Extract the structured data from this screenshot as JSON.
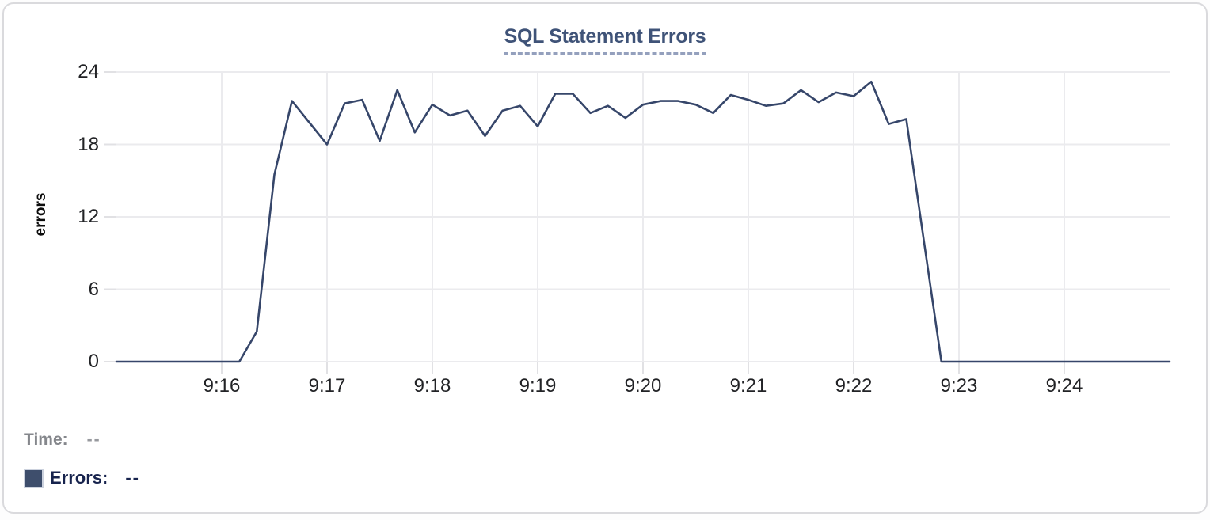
{
  "chart_data": {
    "type": "line",
    "title": "SQL Statement Errors",
    "ylabel": "errors",
    "yticks": [
      0,
      6,
      12,
      18,
      24
    ],
    "ylim": [
      0,
      24
    ],
    "x_domain_seconds": [
      0,
      600
    ],
    "xticks": [
      {
        "label": "9:16",
        "sec": 60
      },
      {
        "label": "9:17",
        "sec": 120
      },
      {
        "label": "9:18",
        "sec": 180
      },
      {
        "label": "9:19",
        "sec": 240
      },
      {
        "label": "9:20",
        "sec": 300
      },
      {
        "label": "9:21",
        "sec": 360
      },
      {
        "label": "9:22",
        "sec": 420
      },
      {
        "label": "9:23",
        "sec": 480
      },
      {
        "label": "9:24",
        "sec": 540
      }
    ],
    "grid": true,
    "legend_position": "bottom-left",
    "colors": {
      "line": "#36466a",
      "legend_swatch": "#3e4e6c"
    },
    "series": [
      {
        "name": "Errors",
        "points": [
          [
            0,
            0
          ],
          [
            10,
            0
          ],
          [
            20,
            0
          ],
          [
            30,
            0
          ],
          [
            40,
            0
          ],
          [
            50,
            0
          ],
          [
            60,
            0
          ],
          [
            70,
            0
          ],
          [
            80,
            2.5
          ],
          [
            90,
            15.5
          ],
          [
            100,
            21.6
          ],
          [
            110,
            19.8
          ],
          [
            120,
            18
          ],
          [
            130,
            21.4
          ],
          [
            140,
            21.7
          ],
          [
            150,
            18.3
          ],
          [
            160,
            22.5
          ],
          [
            170,
            19
          ],
          [
            180,
            21.3
          ],
          [
            190,
            20.4
          ],
          [
            200,
            20.8
          ],
          [
            210,
            18.7
          ],
          [
            220,
            20.8
          ],
          [
            230,
            21.2
          ],
          [
            240,
            19.5
          ],
          [
            250,
            22.2
          ],
          [
            260,
            22.2
          ],
          [
            270,
            20.6
          ],
          [
            280,
            21.2
          ],
          [
            290,
            20.2
          ],
          [
            300,
            21.3
          ],
          [
            310,
            21.6
          ],
          [
            320,
            21.6
          ],
          [
            330,
            21.3
          ],
          [
            340,
            20.6
          ],
          [
            350,
            22.1
          ],
          [
            360,
            21.7
          ],
          [
            370,
            21.2
          ],
          [
            380,
            21.4
          ],
          [
            390,
            22.5
          ],
          [
            400,
            21.5
          ],
          [
            410,
            22.3
          ],
          [
            420,
            22
          ],
          [
            430,
            23.2
          ],
          [
            440,
            19.7
          ],
          [
            450,
            20.1
          ],
          [
            460,
            10
          ],
          [
            470,
            0
          ],
          [
            480,
            0
          ],
          [
            490,
            0
          ],
          [
            500,
            0
          ],
          [
            510,
            0
          ],
          [
            520,
            0
          ],
          [
            530,
            0
          ],
          [
            540,
            0
          ],
          [
            550,
            0
          ],
          [
            560,
            0
          ],
          [
            570,
            0
          ],
          [
            580,
            0
          ],
          [
            590,
            0
          ],
          [
            600,
            0
          ]
        ]
      }
    ],
    "legend_rows": [
      {
        "label": "Time:",
        "value": "--"
      },
      {
        "label": "Errors:",
        "value": "--"
      }
    ]
  }
}
